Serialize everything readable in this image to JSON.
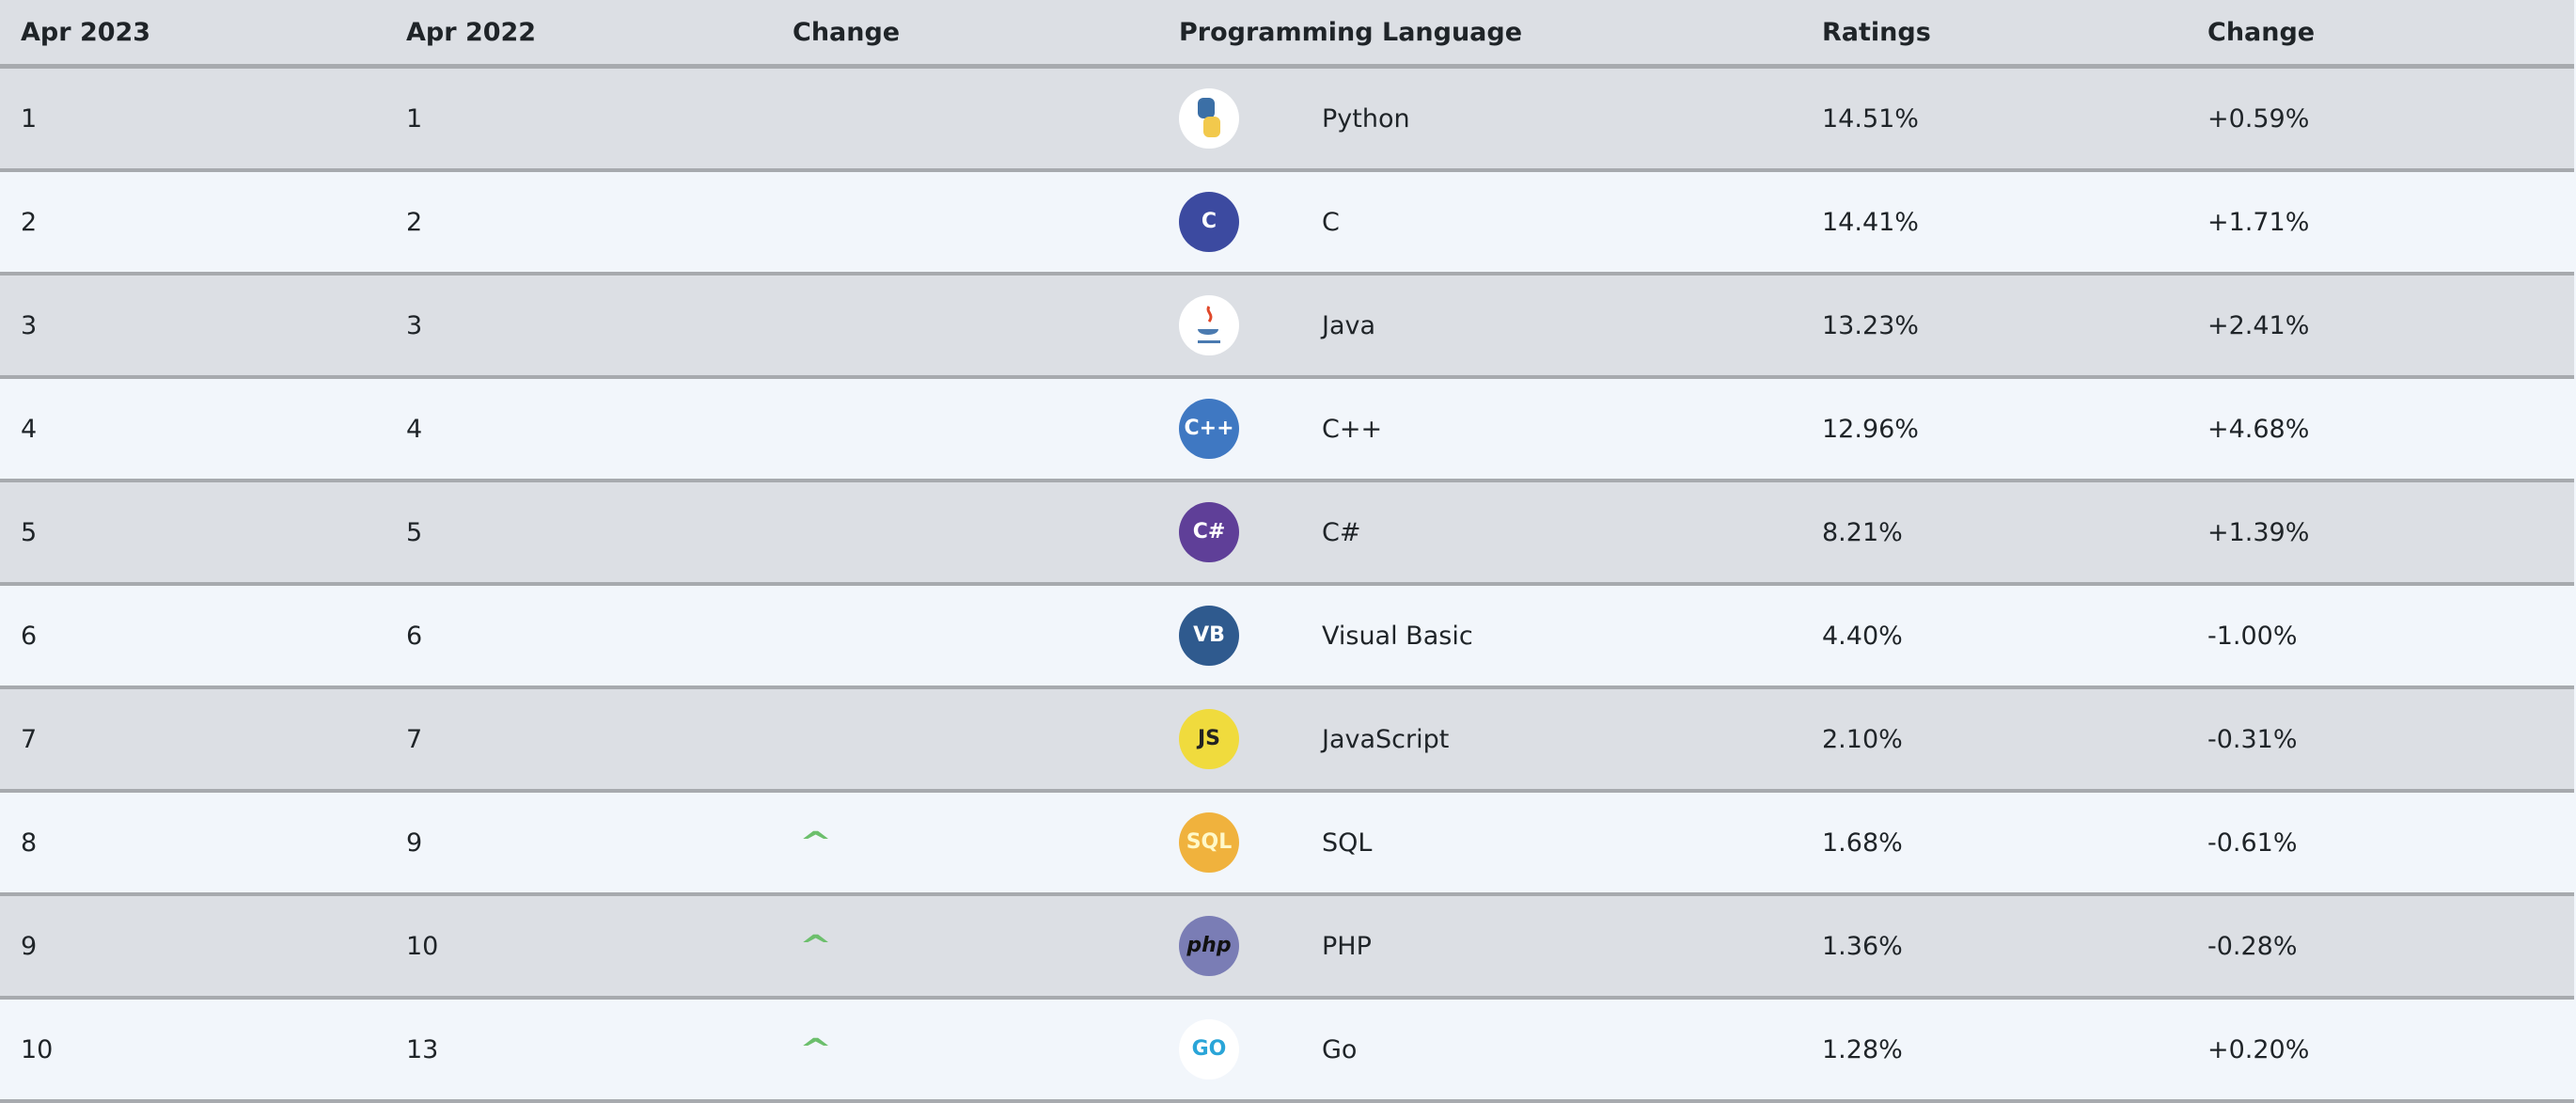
{
  "headers": [
    "Apr 2023",
    "Apr 2022",
    "Change",
    "Programming Language",
    "Ratings",
    "Change"
  ],
  "colors": {
    "row_odd": "#dcdfe4",
    "row_even": "#f2f6fb",
    "border": "#a7aaae",
    "up_arrow": "#6cbf6c"
  },
  "rows": [
    {
      "rank": "1",
      "prev": "1",
      "change_icon": "",
      "logo": "python-logo-icon",
      "name": "Python",
      "rating": "14.51%",
      "delta": "+0.59%"
    },
    {
      "rank": "2",
      "prev": "2",
      "change_icon": "",
      "logo": "c-logo-icon",
      "name": "C",
      "rating": "14.41%",
      "delta": "+1.71%"
    },
    {
      "rank": "3",
      "prev": "3",
      "change_icon": "",
      "logo": "java-logo-icon",
      "name": "Java",
      "rating": "13.23%",
      "delta": "+2.41%"
    },
    {
      "rank": "4",
      "prev": "4",
      "change_icon": "",
      "logo": "cpp-logo-icon",
      "name": "C++",
      "rating": "12.96%",
      "delta": "+4.68%"
    },
    {
      "rank": "5",
      "prev": "5",
      "change_icon": "",
      "logo": "csharp-logo-icon",
      "name": "C#",
      "rating": "8.21%",
      "delta": "+1.39%"
    },
    {
      "rank": "6",
      "prev": "6",
      "change_icon": "",
      "logo": "visual-basic-logo-icon",
      "name": "Visual Basic",
      "rating": "4.40%",
      "delta": "-1.00%"
    },
    {
      "rank": "7",
      "prev": "7",
      "change_icon": "",
      "logo": "javascript-logo-icon",
      "name": "JavaScript",
      "rating": "2.10%",
      "delta": "-0.31%"
    },
    {
      "rank": "8",
      "prev": "9",
      "change_icon": "chevron-up-icon",
      "logo": "sql-logo-icon",
      "name": "SQL",
      "rating": "1.68%",
      "delta": "-0.61%"
    },
    {
      "rank": "9",
      "prev": "10",
      "change_icon": "chevron-up-icon",
      "logo": "php-logo-icon",
      "name": "PHP",
      "rating": "1.36%",
      "delta": "-0.28%"
    },
    {
      "rank": "10",
      "prev": "13",
      "change_icon": "chevron-up-icon",
      "logo": "go-logo-icon",
      "name": "Go",
      "rating": "1.28%",
      "delta": "+0.20%"
    }
  ],
  "logo_text": {
    "c": "C",
    "cpp": "C++",
    "csharp": "C#",
    "vb": "VB",
    "js": "JS",
    "sql": "SQL",
    "php": "php",
    "go": "GO"
  }
}
